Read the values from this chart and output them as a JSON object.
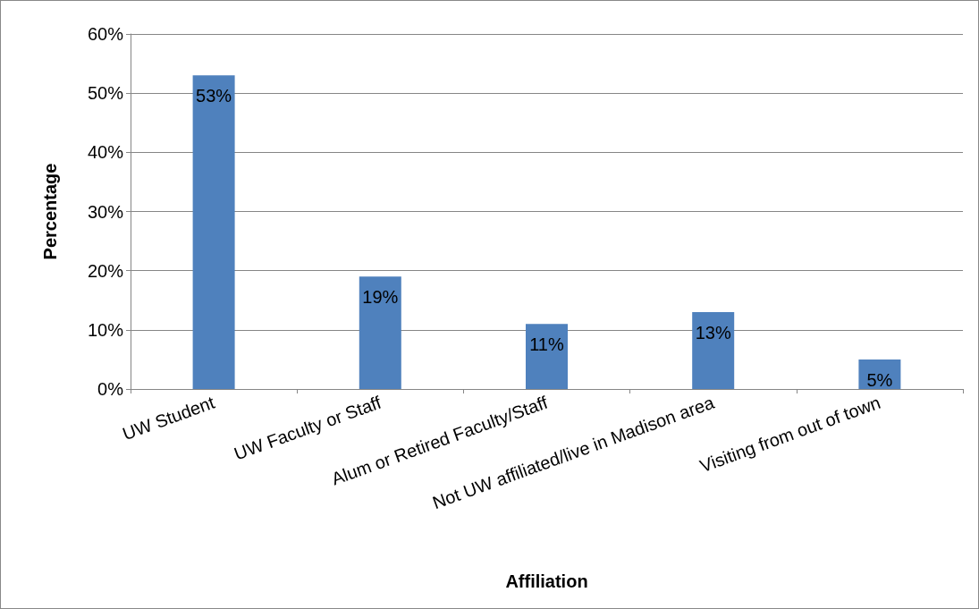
{
  "chart_data": {
    "type": "bar",
    "xlabel": "Affiliation",
    "ylabel": "Percentage",
    "categories": [
      "UW Student",
      "UW Faculty or Staff",
      "Alum or Retired Faculty/Staff",
      "Not UW affiliated/live in Madison area",
      "Visiting from out of town"
    ],
    "values": [
      53,
      19,
      11,
      13,
      5
    ],
    "color": "#4f81bd",
    "value_labels": [
      "53%",
      "19%",
      "11%",
      "13%",
      "5%"
    ],
    "ylim": [
      0,
      60
    ],
    "yticks": [
      {
        "value": 0,
        "label": "0%"
      },
      {
        "value": 10,
        "label": "10%"
      },
      {
        "value": 20,
        "label": "20%"
      },
      {
        "value": 30,
        "label": "30%"
      },
      {
        "value": 40,
        "label": "40%"
      },
      {
        "value": 50,
        "label": "50%"
      },
      {
        "value": 60,
        "label": "60%"
      }
    ],
    "grid": "y"
  }
}
